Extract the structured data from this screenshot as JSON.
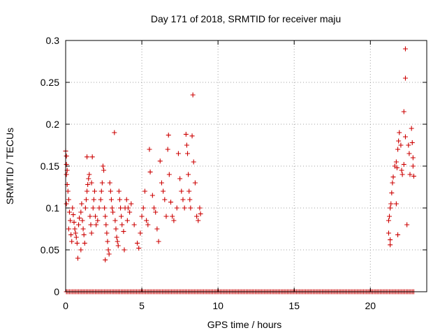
{
  "chart_data": {
    "type": "scatter",
    "title": "Day 171 of 2018, SRMTID for receiver maju",
    "xlabel": "GPS time / hours",
    "ylabel": "SRMTID / TECUs",
    "xlim": [
      0,
      23.7
    ],
    "ylim": [
      0,
      0.3
    ],
    "xticks": [
      0,
      5,
      10,
      15,
      20
    ],
    "xtick_labels": [
      "0",
      "5",
      "10",
      "15",
      "20"
    ],
    "yticks": [
      0,
      0.05,
      0.1,
      0.15,
      0.2,
      0.25,
      0.3
    ],
    "ytick_labels": [
      "0",
      "0.05",
      "0.1",
      "0.15",
      "0.2",
      "0.25",
      "0.3"
    ],
    "grid": true,
    "marker": "+",
    "series": [
      {
        "name": "SRMTID",
        "color": "#cc0000",
        "points": [
          [
            0.0,
            0.168
          ],
          [
            0.05,
            0.162
          ],
          [
            0.05,
            0.152
          ],
          [
            0.1,
            0.145
          ],
          [
            0.05,
            0.14
          ],
          [
            0.1,
            0.128
          ],
          [
            0.15,
            0.12
          ],
          [
            0.2,
            0.11
          ],
          [
            0.05,
            0.105
          ],
          [
            0.25,
            0.095
          ],
          [
            0.3,
            0.085
          ],
          [
            0.2,
            0.075
          ],
          [
            0.35,
            0.068
          ],
          [
            0.4,
            0.06
          ],
          [
            0.45,
            0.1
          ],
          [
            0.5,
            0.092
          ],
          [
            0.55,
            0.083
          ],
          [
            0.6,
            0.075
          ],
          [
            0.65,
            0.07
          ],
          [
            0.7,
            0.065
          ],
          [
            0.75,
            0.058
          ],
          [
            0.8,
            0.04
          ],
          [
            0.85,
            0.08
          ],
          [
            0.9,
            0.088
          ],
          [
            1.0,
            0.095
          ],
          [
            1.05,
            0.105
          ],
          [
            1.1,
            0.085
          ],
          [
            1.15,
            0.075
          ],
          [
            1.2,
            0.068
          ],
          [
            1.25,
            0.058
          ],
          [
            1.0,
            0.05
          ],
          [
            1.3,
            0.1
          ],
          [
            1.35,
            0.11
          ],
          [
            1.4,
            0.12
          ],
          [
            1.45,
            0.128
          ],
          [
            1.5,
            0.135
          ],
          [
            1.55,
            0.14
          ],
          [
            1.4,
            0.161
          ],
          [
            1.75,
            0.161
          ],
          [
            1.7,
            0.13
          ],
          [
            1.6,
            0.09
          ],
          [
            1.65,
            0.08
          ],
          [
            1.7,
            0.07
          ],
          [
            1.8,
            0.1
          ],
          [
            1.85,
            0.11
          ],
          [
            1.9,
            0.12
          ],
          [
            1.95,
            0.09
          ],
          [
            2.0,
            0.08
          ],
          [
            2.1,
            0.085
          ],
          [
            2.2,
            0.1
          ],
          [
            2.3,
            0.11
          ],
          [
            2.35,
            0.12
          ],
          [
            2.4,
            0.13
          ],
          [
            2.45,
            0.15
          ],
          [
            2.5,
            0.145
          ],
          [
            2.55,
            0.1
          ],
          [
            2.6,
            0.09
          ],
          [
            2.65,
            0.08
          ],
          [
            2.7,
            0.07
          ],
          [
            2.75,
            0.06
          ],
          [
            2.8,
            0.05
          ],
          [
            2.85,
            0.045
          ],
          [
            2.6,
            0.038
          ],
          [
            2.9,
            0.13
          ],
          [
            2.95,
            0.12
          ],
          [
            3.0,
            0.11
          ],
          [
            3.05,
            0.1
          ],
          [
            3.1,
            0.095
          ],
          [
            3.2,
            0.19
          ],
          [
            3.25,
            0.085
          ],
          [
            3.3,
            0.075
          ],
          [
            3.35,
            0.065
          ],
          [
            3.4,
            0.06
          ],
          [
            3.45,
            0.055
          ],
          [
            3.5,
            0.12
          ],
          [
            3.55,
            0.11
          ],
          [
            3.6,
            0.1
          ],
          [
            3.65,
            0.09
          ],
          [
            3.7,
            0.08
          ],
          [
            3.8,
            0.072
          ],
          [
            3.85,
            0.05
          ],
          [
            3.9,
            0.1
          ],
          [
            4.0,
            0.11
          ],
          [
            4.05,
            0.085
          ],
          [
            4.1,
            0.1
          ],
          [
            4.2,
            0.095
          ],
          [
            4.3,
            0.105
          ],
          [
            4.5,
            0.08
          ],
          [
            4.7,
            0.058
          ],
          [
            4.8,
            0.052
          ],
          [
            4.9,
            0.07
          ],
          [
            5.0,
            0.09
          ],
          [
            5.1,
            0.1
          ],
          [
            5.2,
            0.12
          ],
          [
            5.3,
            0.085
          ],
          [
            5.4,
            0.08
          ],
          [
            5.5,
            0.17
          ],
          [
            5.55,
            0.143
          ],
          [
            5.7,
            0.115
          ],
          [
            5.8,
            0.1
          ],
          [
            5.9,
            0.095
          ],
          [
            6.0,
            0.075
          ],
          [
            6.1,
            0.06
          ],
          [
            6.2,
            0.156
          ],
          [
            6.3,
            0.13
          ],
          [
            6.4,
            0.12
          ],
          [
            6.5,
            0.11
          ],
          [
            6.6,
            0.09
          ],
          [
            6.7,
            0.17
          ],
          [
            6.75,
            0.187
          ],
          [
            6.8,
            0.14
          ],
          [
            6.9,
            0.107
          ],
          [
            7.0,
            0.09
          ],
          [
            7.1,
            0.085
          ],
          [
            7.3,
            0.1
          ],
          [
            7.4,
            0.165
          ],
          [
            7.5,
            0.135
          ],
          [
            7.6,
            0.12
          ],
          [
            7.7,
            0.11
          ],
          [
            7.8,
            0.1
          ],
          [
            7.9,
            0.188
          ],
          [
            7.95,
            0.175
          ],
          [
            8.0,
            0.165
          ],
          [
            8.05,
            0.14
          ],
          [
            8.1,
            0.12
          ],
          [
            8.15,
            0.11
          ],
          [
            8.2,
            0.1
          ],
          [
            8.3,
            0.186
          ],
          [
            8.35,
            0.235
          ],
          [
            8.4,
            0.155
          ],
          [
            8.5,
            0.13
          ],
          [
            8.6,
            0.09
          ],
          [
            8.7,
            0.085
          ],
          [
            8.8,
            0.1
          ],
          [
            8.85,
            0.093
          ],
          [
            21.2,
            0.085
          ],
          [
            21.25,
            0.09
          ],
          [
            21.3,
            0.1
          ],
          [
            21.35,
            0.105
          ],
          [
            21.2,
            0.07
          ],
          [
            21.3,
            0.062
          ],
          [
            21.3,
            0.056
          ],
          [
            21.4,
            0.118
          ],
          [
            21.45,
            0.13
          ],
          [
            21.5,
            0.137
          ],
          [
            21.6,
            0.15
          ],
          [
            21.7,
            0.155
          ],
          [
            21.75,
            0.148
          ],
          [
            21.8,
            0.17
          ],
          [
            21.85,
            0.18
          ],
          [
            21.9,
            0.19
          ],
          [
            22.0,
            0.175
          ],
          [
            22.05,
            0.145
          ],
          [
            22.1,
            0.14
          ],
          [
            22.2,
            0.152
          ],
          [
            22.3,
            0.185
          ],
          [
            22.2,
            0.215
          ],
          [
            22.3,
            0.255
          ],
          [
            22.3,
            0.29
          ],
          [
            22.4,
            0.08
          ],
          [
            22.5,
            0.175
          ],
          [
            22.55,
            0.165
          ],
          [
            22.6,
            0.14
          ],
          [
            22.7,
            0.195
          ],
          [
            22.75,
            0.178
          ],
          [
            22.8,
            0.16
          ],
          [
            22.8,
            0.15
          ],
          [
            22.85,
            0.138
          ],
          [
            21.7,
            0.105
          ],
          [
            21.8,
            0.068
          ]
        ],
        "zero_band": {
          "x_from": 0.05,
          "x_to": 22.9,
          "step": 0.1,
          "value": 0
        }
      }
    ]
  }
}
